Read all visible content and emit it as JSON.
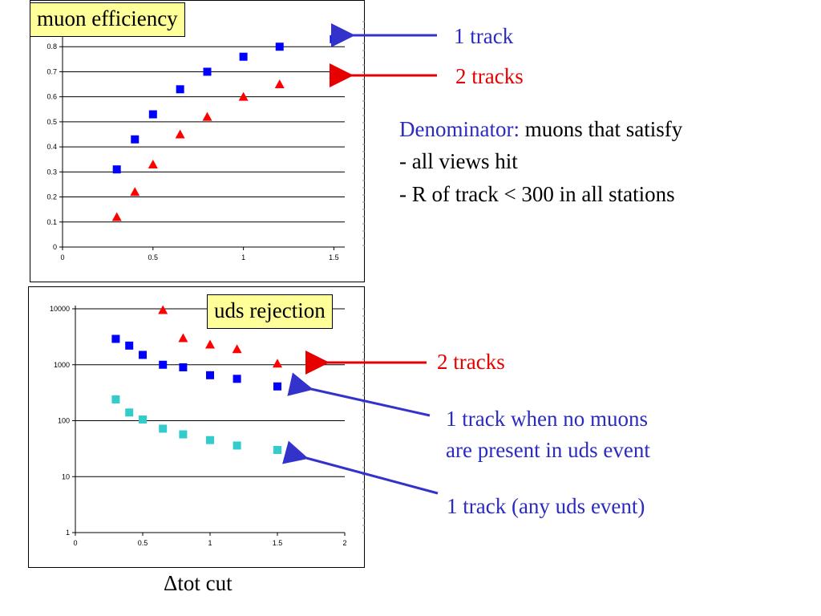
{
  "chart_data": [
    {
      "type": "scatter",
      "title": "muon efficiency",
      "xlim": [
        0,
        1.6
      ],
      "ylim": [
        0,
        0.9
      ],
      "xticks": [
        "0",
        "0.5",
        "1",
        "1.5"
      ],
      "yticks": [
        "0",
        "0.1",
        "0.2",
        "0.3",
        "0.4",
        "0.5",
        "0.6",
        "0.7",
        "0.8"
      ],
      "grid": true,
      "series": [
        {
          "name": "1 track",
          "color": "#0000ff",
          "marker": "square",
          "x": [
            0.3,
            0.4,
            0.5,
            0.65,
            0.8,
            1.0,
            1.2,
            1.5
          ],
          "y": [
            0.31,
            0.43,
            0.53,
            0.63,
            0.7,
            0.76,
            0.8,
            0.83
          ]
        },
        {
          "name": "2 tracks",
          "color": "#ff0000",
          "marker": "triangle",
          "x": [
            0.3,
            0.4,
            0.5,
            0.65,
            0.8,
            1.0,
            1.2,
            1.5
          ],
          "y": [
            0.12,
            0.22,
            0.33,
            0.45,
            0.52,
            0.6,
            0.65,
            0.69
          ]
        }
      ]
    },
    {
      "type": "scatter",
      "title": "uds rejection",
      "xlabel": "Δtot cut",
      "xlim": [
        0,
        2
      ],
      "ylim": [
        1,
        10000
      ],
      "yscale": "log",
      "xticks": [
        "0",
        "0.5",
        "1",
        "1.5",
        "2"
      ],
      "yticks": [
        "1",
        "10",
        "100",
        "1000",
        "10000"
      ],
      "grid": true,
      "series": [
        {
          "name": "2 tracks",
          "color": "#ff0000",
          "marker": "triangle",
          "x": [
            0.65,
            0.8,
            1.0,
            1.2,
            1.5
          ],
          "y": [
            9500,
            3000,
            2300,
            1900,
            1050
          ]
        },
        {
          "name": "1 track when no muons are present in uds event",
          "color": "#0000ff",
          "marker": "square",
          "x": [
            0.3,
            0.4,
            0.5,
            0.65,
            0.8,
            1.0,
            1.2,
            1.5
          ],
          "y": [
            2900,
            2200,
            1500,
            1000,
            900,
            650,
            560,
            410
          ]
        },
        {
          "name": "1 track (any uds event)",
          "color": "#33cccc",
          "marker": "square",
          "x": [
            0.3,
            0.4,
            0.5,
            0.65,
            0.8,
            1.0,
            1.2,
            1.5
          ],
          "y": [
            240,
            140,
            105,
            72,
            57,
            45,
            36,
            30
          ]
        }
      ]
    }
  ],
  "labels": {
    "eff_title": "muon efficiency",
    "uds_title": "uds rejection",
    "one_track": "1 track",
    "two_tracks_top": "2 tracks",
    "denominator_prefix": "Denominator:",
    "denominator_rest": " muons that satisfy",
    "cond1": "- all views hit",
    "cond2": "- R of track < 300 in all stations",
    "two_tracks_bottom": "2 tracks",
    "no_muons_line1": "1 track when no muons",
    "no_muons_line2": "are present in uds event",
    "any_uds": "1 track (any uds event)",
    "xaxis": "Δtot cut"
  },
  "colors": {
    "blue_text": "#2b2bbf",
    "red_text": "#e60000",
    "title_bg": "#ffff99"
  }
}
